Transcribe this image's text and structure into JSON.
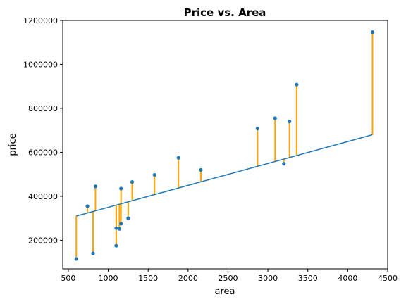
{
  "chart_data": {
    "type": "scatter",
    "title": "Price vs. Area",
    "xlabel": "area",
    "ylabel": "price",
    "xlim": [
      430,
      4500
    ],
    "ylim": [
      70000,
      1200000
    ],
    "xticks": [
      500,
      1000,
      1500,
      2000,
      2500,
      3000,
      3500,
      4000,
      4500
    ],
    "yticks": [
      200000,
      400000,
      600000,
      800000,
      1000000,
      1200000
    ],
    "grid": false,
    "points": [
      {
        "area": 600,
        "price": 115000
      },
      {
        "area": 740,
        "price": 355000
      },
      {
        "area": 810,
        "price": 140000
      },
      {
        "area": 840,
        "price": 445000
      },
      {
        "area": 1100,
        "price": 255000
      },
      {
        "area": 1100,
        "price": 175000
      },
      {
        "area": 1140,
        "price": 252000
      },
      {
        "area": 1160,
        "price": 275000
      },
      {
        "area": 1160,
        "price": 435000
      },
      {
        "area": 1250,
        "price": 300000
      },
      {
        "area": 1300,
        "price": 465000
      },
      {
        "area": 1580,
        "price": 497000
      },
      {
        "area": 1880,
        "price": 575000
      },
      {
        "area": 2160,
        "price": 520000
      },
      {
        "area": 2870,
        "price": 708000
      },
      {
        "area": 3090,
        "price": 755000
      },
      {
        "area": 3200,
        "price": 548000
      },
      {
        "area": 3270,
        "price": 740000
      },
      {
        "area": 3360,
        "price": 908000
      },
      {
        "area": 4310,
        "price": 1147000
      }
    ],
    "regression_line": {
      "x": [
        600,
        4310
      ],
      "y": [
        310000,
        680000
      ]
    },
    "colors": {
      "points": "#1f77b4",
      "line": "#1f77b4",
      "residuals": "#ffa500"
    }
  }
}
